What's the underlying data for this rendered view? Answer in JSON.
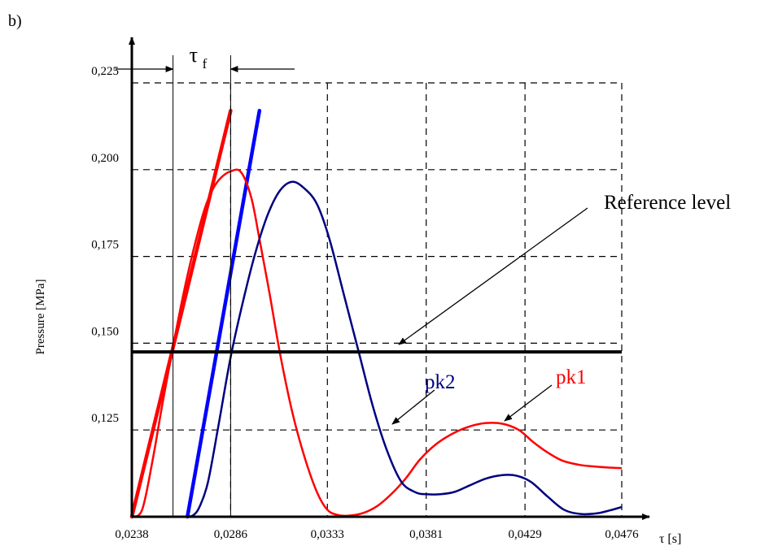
{
  "panel_label": "b)",
  "chart_data": {
    "type": "line",
    "title": "",
    "xlabel": "τ [s]",
    "ylabel": "Pressure [MPa]",
    "x_ticks": [
      "0,0238",
      "0,0286",
      "0,0333",
      "0,0381",
      "0,0429",
      "0,0476"
    ],
    "x_tick_values": [
      0.0238,
      0.0286,
      0.0333,
      0.0381,
      0.0429,
      0.0476
    ],
    "y_ticks": [
      "0,125",
      "0,150",
      "0,175",
      "0,200",
      "0,225"
    ],
    "y_tick_values": [
      0.125,
      0.15,
      0.175,
      0.2,
      0.225
    ],
    "xlim": [
      0.0238,
      0.0476
    ],
    "ylim": [
      0.1,
      0.225
    ],
    "grid": "dashed",
    "reference_level": {
      "label": "Reference level",
      "value": 0.1475
    },
    "tau_f_label": "τ",
    "tau_f_subscript": "f",
    "tau_f_range": [
      0.0258,
      0.0286
    ],
    "series": [
      {
        "name": "pk1",
        "color": "#ff0000",
        "x": [
          0.0238,
          0.0243,
          0.0248,
          0.0253,
          0.0258,
          0.0263,
          0.0268,
          0.0273,
          0.0277,
          0.0281,
          0.0286,
          0.0291,
          0.0296,
          0.03,
          0.0305,
          0.031,
          0.0316,
          0.0322,
          0.0328,
          0.0333,
          0.0338,
          0.0343,
          0.035,
          0.0357,
          0.0364,
          0.0371,
          0.0378,
          0.0386,
          0.0394,
          0.0402,
          0.041,
          0.0418,
          0.0426,
          0.0433,
          0.044,
          0.0447,
          0.0455,
          0.0462,
          0.0469,
          0.0476
        ],
        "y": [
          0.1,
          0.102,
          0.116,
          0.133,
          0.149,
          0.164,
          0.177,
          0.188,
          0.194,
          0.1975,
          0.1995,
          0.1993,
          0.192,
          0.18,
          0.164,
          0.147,
          0.13,
          0.117,
          0.107,
          0.102,
          0.1005,
          0.1003,
          0.101,
          0.103,
          0.1065,
          0.111,
          0.1165,
          0.121,
          0.124,
          0.126,
          0.127,
          0.1268,
          0.125,
          0.1215,
          0.1185,
          0.1162,
          0.115,
          0.1145,
          0.1142,
          0.114
        ]
      },
      {
        "name": "pk2",
        "color": "#000080",
        "x": [
          0.0265,
          0.0268,
          0.0271,
          0.0275,
          0.028,
          0.0286,
          0.0292,
          0.0298,
          0.0304,
          0.031,
          0.0316,
          0.0322,
          0.0328,
          0.0334,
          0.0341,
          0.0348,
          0.0355,
          0.0362,
          0.0369,
          0.0376,
          0.0381,
          0.0388,
          0.0395,
          0.0402,
          0.041,
          0.0418,
          0.0425,
          0.0432,
          0.044,
          0.0448,
          0.0456,
          0.0464,
          0.047,
          0.0476
        ],
        "y": [
          0.1,
          0.1005,
          0.103,
          0.11,
          0.126,
          0.146,
          0.162,
          0.176,
          0.187,
          0.194,
          0.1965,
          0.1945,
          0.19,
          0.18,
          0.164,
          0.148,
          0.132,
          0.119,
          0.11,
          0.107,
          0.1065,
          0.1065,
          0.1072,
          0.109,
          0.111,
          0.112,
          0.1118,
          0.11,
          0.1058,
          0.102,
          0.1008,
          0.101,
          0.1018,
          0.1028
        ]
      }
    ],
    "tangent_lines": [
      {
        "color": "#ff0000",
        "x": [
          0.0238,
          0.0286
        ],
        "y": [
          0.1,
          0.217
        ]
      },
      {
        "color": "#0000ff",
        "x": [
          0.0265,
          0.03
        ],
        "y": [
          0.1,
          0.217
        ]
      }
    ]
  }
}
